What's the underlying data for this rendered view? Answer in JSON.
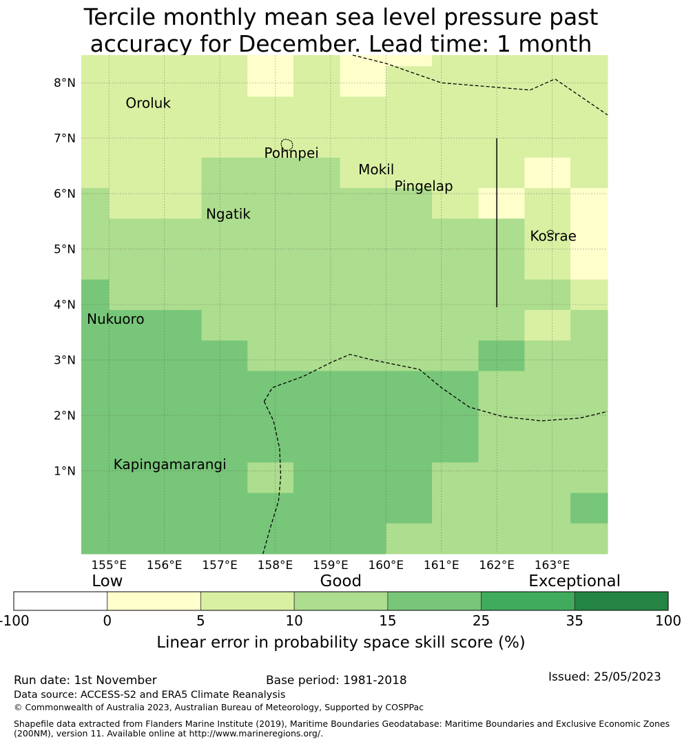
{
  "title_line1": "Tercile monthly mean sea level pressure past",
  "title_line2": "accuracy for December. Lead time: 1 month",
  "map": {
    "lon_range": [
      154.5,
      164.0
    ],
    "lat_range": [
      -0.5,
      8.5
    ],
    "lon_ticks": [
      {
        "value": 155,
        "label": "155°E"
      },
      {
        "value": 156,
        "label": "156°E"
      },
      {
        "value": 157,
        "label": "157°E"
      },
      {
        "value": 158,
        "label": "158°E"
      },
      {
        "value": 159,
        "label": "159°E"
      },
      {
        "value": 160,
        "label": "160°E"
      },
      {
        "value": 161,
        "label": "161°E"
      },
      {
        "value": 162,
        "label": "162°E"
      },
      {
        "value": 163,
        "label": "163°E"
      }
    ],
    "lat_ticks": [
      {
        "value": 1,
        "label": "1°N"
      },
      {
        "value": 2,
        "label": "2°N"
      },
      {
        "value": 3,
        "label": "3°N"
      },
      {
        "value": 4,
        "label": "4°N"
      },
      {
        "value": 5,
        "label": "5°N"
      },
      {
        "value": 6,
        "label": "6°N"
      },
      {
        "value": 7,
        "label": "7°N"
      },
      {
        "value": 8,
        "label": "8°N"
      }
    ],
    "grid_lon": [
      154.5,
      155.0,
      156.0,
      156.67,
      157.5,
      158.33,
      159.17,
      160.0,
      160.83,
      161.67,
      162.5,
      163.33,
      164.0
    ],
    "grid_lat": [
      -0.5,
      0.05,
      0.6,
      1.15,
      1.7,
      2.25,
      2.8,
      3.35,
      3.9,
      4.45,
      5.0,
      5.55,
      6.1,
      6.65,
      7.2,
      7.75,
      8.3,
      8.5
    ],
    "grid_note": "category index per cell, rows listed north to south (0=Low 0-5, 1=5-10, 2=Good 10-15, 3=15-25)",
    "grid": [
      [
        1,
        1,
        1,
        1,
        0,
        1,
        0,
        0,
        1,
        1,
        1,
        1
      ],
      [
        1,
        1,
        1,
        1,
        0,
        1,
        0,
        1,
        1,
        1,
        1,
        1
      ],
      [
        1,
        1,
        1,
        1,
        1,
        1,
        1,
        1,
        1,
        1,
        1,
        1
      ],
      [
        1,
        1,
        1,
        1,
        1,
        1,
        1,
        1,
        1,
        1,
        1,
        1
      ],
      [
        1,
        1,
        1,
        2,
        2,
        2,
        1,
        1,
        1,
        1,
        0,
        1
      ],
      [
        2,
        1,
        1,
        2,
        2,
        2,
        2,
        2,
        1,
        0,
        1,
        0
      ],
      [
        2,
        2,
        2,
        2,
        2,
        2,
        2,
        2,
        2,
        2,
        1,
        0
      ],
      [
        2,
        2,
        2,
        2,
        2,
        2,
        2,
        2,
        2,
        2,
        1,
        0
      ],
      [
        3,
        2,
        2,
        2,
        2,
        2,
        2,
        2,
        2,
        2,
        2,
        1
      ],
      [
        3,
        3,
        3,
        2,
        2,
        2,
        2,
        2,
        2,
        2,
        1,
        2
      ],
      [
        3,
        3,
        3,
        3,
        2,
        2,
        2,
        2,
        2,
        3,
        2,
        2
      ],
      [
        3,
        3,
        3,
        3,
        3,
        3,
        3,
        3,
        3,
        2,
        2,
        2
      ],
      [
        3,
        3,
        3,
        3,
        3,
        3,
        3,
        3,
        3,
        2,
        2,
        2
      ],
      [
        3,
        3,
        3,
        3,
        3,
        3,
        3,
        3,
        3,
        2,
        2,
        2
      ],
      [
        3,
        3,
        3,
        3,
        2,
        3,
        3,
        3,
        2,
        2,
        2,
        2
      ],
      [
        3,
        3,
        3,
        3,
        3,
        3,
        3,
        3,
        2,
        2,
        2,
        3
      ],
      [
        3,
        3,
        3,
        3,
        3,
        3,
        3,
        2,
        2,
        2,
        2,
        2
      ]
    ],
    "places": [
      {
        "name": "Oroluk",
        "lon": 155.3,
        "lat": 7.55
      },
      {
        "name": "Pohnpei",
        "lon": 157.8,
        "lat": 6.65
      },
      {
        "name": "Mokil",
        "lon": 159.5,
        "lat": 6.35
      },
      {
        "name": "Pingelap",
        "lon": 160.15,
        "lat": 6.05
      },
      {
        "name": "Ngatik",
        "lon": 156.75,
        "lat": 5.55
      },
      {
        "name": "Kosrae",
        "lon": 162.6,
        "lat": 5.15
      },
      {
        "name": "Nukuoro",
        "lon": 154.6,
        "lat": 3.65
      },
      {
        "name": "Kapingamarangi",
        "lon": 155.08,
        "lat": 1.03
      }
    ],
    "eez_boundaries": [
      [
        [
          159.4,
          8.5
        ],
        [
          160.0,
          8.35
        ],
        [
          161.0,
          8.0
        ],
        [
          162.6,
          7.87
        ],
        [
          163.05,
          8.07
        ],
        [
          164.0,
          7.42
        ]
      ],
      [
        [
          157.8,
          2.25
        ],
        [
          157.95,
          2.5
        ],
        [
          158.5,
          2.7
        ],
        [
          159.0,
          2.95
        ],
        [
          159.35,
          3.1
        ],
        [
          159.75,
          3.0
        ],
        [
          160.6,
          2.83
        ],
        [
          161.0,
          2.5
        ],
        [
          161.5,
          2.15
        ],
        [
          162.1,
          1.98
        ],
        [
          162.8,
          1.9
        ],
        [
          163.5,
          1.95
        ],
        [
          164.0,
          2.07
        ]
      ],
      [
        [
          157.8,
          2.25
        ],
        [
          157.97,
          1.9
        ],
        [
          158.08,
          1.4
        ],
        [
          158.1,
          0.9
        ],
        [
          158.06,
          0.45
        ],
        [
          157.92,
          0.0
        ],
        [
          157.78,
          -0.5
        ]
      ]
    ],
    "solid_boundary": [
      [
        162.0,
        7.0
      ],
      [
        162.0,
        3.95
      ]
    ]
  },
  "colorbar": {
    "categories": [
      {
        "label": "Low",
        "center_tick": 1
      },
      {
        "label": "Good",
        "center_tick": 3.5
      },
      {
        "label": "Exceptional",
        "center_tick": 6
      }
    ],
    "ticks": [
      "-100",
      "0",
      "5",
      "10",
      "15",
      "25",
      "35",
      "100"
    ],
    "colors": [
      "#ffffff",
      "#ffffcc",
      "#d9f0a3",
      "#addd8e",
      "#78c679",
      "#41ab5d",
      "#238443"
    ],
    "axis_title": "Linear error in probability space skill score (%)"
  },
  "footer": {
    "run_date": "Run date: 1st November",
    "base_period": "Base period: 1981-2018",
    "issued": "Issued: 25/05/2023",
    "data_source": "Data source: ACCESS-S2 and ERA5 Climate Reanalysis",
    "copyright": "© Commonwealth of Australia 2023, Australian Bureau of Meteorology, Supported by COSPPac",
    "shapefile_line1": "Shapefile data extracted from Flanders Marine Institute (2019), Maritime Boundaries Geodatabase: Maritime Boundaries and Exclusive Economic Zones",
    "shapefile_line2": "(200NM), version 11. Available online at http://www.marineregions.org/."
  }
}
